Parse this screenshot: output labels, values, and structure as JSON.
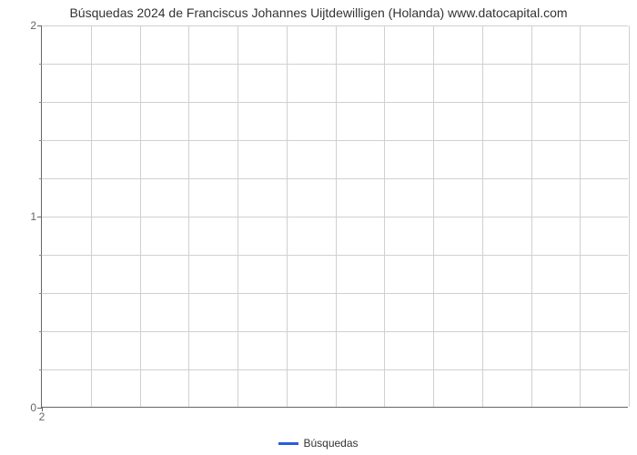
{
  "chart": {
    "type": "line",
    "title": "Búsquedas 2024 de Franciscus Johannes Uijtdewilligen (Holanda) www.datocapital.com",
    "title_fontsize": 14,
    "title_color": "#333333",
    "background_color": "#ffffff",
    "plot_border_color": "#666666",
    "grid_color": "#d0d0d0",
    "axis_label_color": "#666666",
    "axis_label_fontsize": 12,
    "x": {
      "lim": [
        2,
        2
      ],
      "major_ticks": [
        2
      ],
      "major_labels": [
        "2"
      ],
      "grid_minor_count": 11
    },
    "y": {
      "lim": [
        0,
        2
      ],
      "major_ticks": [
        0,
        1,
        2
      ],
      "major_labels": [
        "0",
        "1",
        "2"
      ],
      "minor_per_major": 4
    },
    "series": [
      {
        "name": "Búsquedas",
        "color": "#2b5ed6",
        "line_width": 3,
        "data": []
      }
    ],
    "legend": {
      "position": "bottom-center",
      "swatch_color": "#2b5ed6",
      "label": "Búsquedas",
      "fontsize": 12
    }
  }
}
